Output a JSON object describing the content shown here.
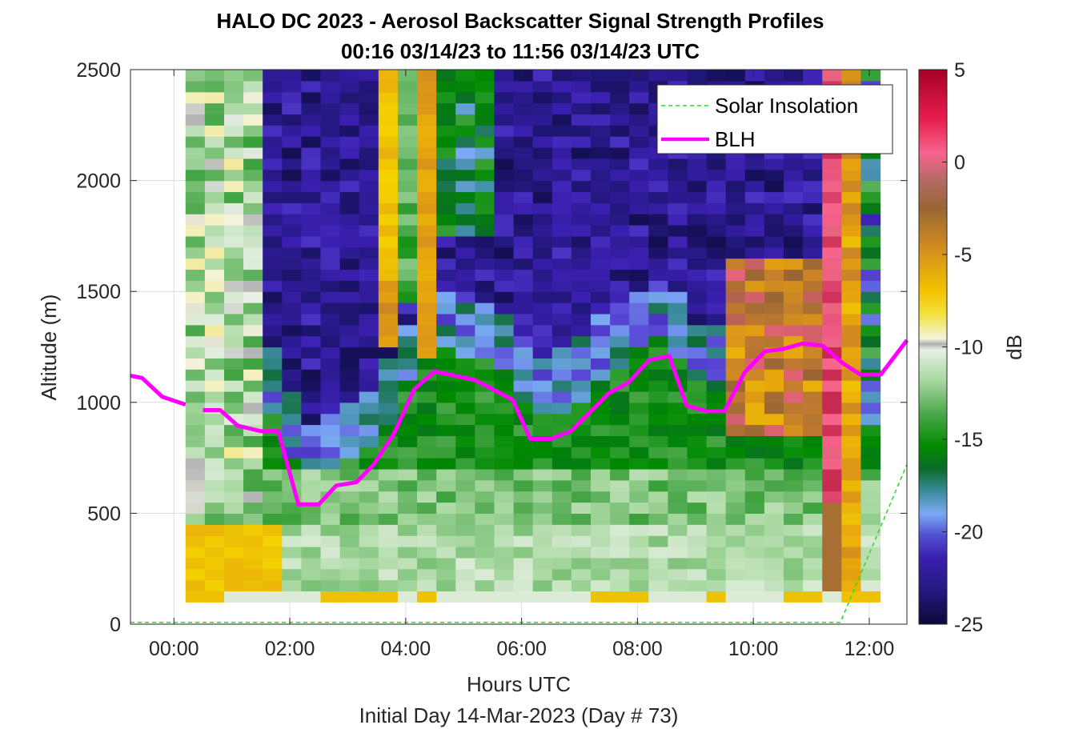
{
  "chart_data": {
    "type": "heatmap",
    "title": "HALO DC 2023 - Aerosol Backscatter Signal Strength Profiles",
    "subtitle": "00:16 03/14/23 to 11:56 03/14/23  UTC",
    "xlabel": "Hours UTC",
    "xlabel2": "Initial Day 14-Mar-2023 (Day # 73)",
    "ylabel": "Altitude (m)",
    "xlim": [
      -0.75,
      12.65
    ],
    "ylim": [
      0,
      2500
    ],
    "x_ticks": [
      0,
      2,
      4,
      6,
      8,
      10,
      12
    ],
    "x_tick_labels": [
      "00:00",
      "02:00",
      "04:00",
      "06:00",
      "08:00",
      "10:00",
      "12:00"
    ],
    "y_ticks": [
      0,
      500,
      1000,
      1500,
      2000,
      2500
    ],
    "y_tick_labels": [
      "0",
      "500",
      "1000",
      "1500",
      "2000",
      "2500"
    ],
    "grid": true,
    "colorbar": {
      "label": "dB",
      "range": [
        -25,
        5
      ],
      "ticks": [
        5,
        0,
        -5,
        -10,
        -15,
        -20,
        -25
      ],
      "tick_labels": [
        "5",
        "0",
        "-5",
        "-10",
        "-15",
        "-20",
        "-25"
      ]
    },
    "legend": {
      "location": "top-right",
      "entries": [
        {
          "label": "Solar Insolation",
          "color": "#22dd22",
          "style": "dashed"
        },
        {
          "label": "BLH",
          "color": "#ff00ff",
          "style": "solid"
        }
      ]
    },
    "heatmap": {
      "x_start": 0.2,
      "x_end": 11.9,
      "x_step": 0.333,
      "y_start": 100,
      "y_end": 2500,
      "y_step": 50,
      "value_unit": "dB"
    },
    "series": [
      {
        "name": "BLH",
        "x": [
          -0.75,
          -0.55,
          -0.2,
          0.2,
          0.5,
          0.8,
          1.1,
          1.5,
          1.8,
          2.15,
          2.5,
          2.8,
          3.15,
          3.45,
          3.8,
          4.15,
          4.5,
          4.85,
          5.2,
          5.5,
          5.85,
          6.15,
          6.5,
          6.85,
          7.2,
          7.5,
          7.85,
          8.2,
          8.55,
          8.85,
          9.2,
          9.5,
          9.85,
          10.2,
          10.5,
          10.85,
          11.2,
          11.55,
          11.85,
          12.2,
          12.65
        ],
        "y": [
          1120,
          1110,
          1025,
          990,
          965,
          965,
          895,
          870,
          870,
          540,
          540,
          625,
          640,
          720,
          860,
          1060,
          1140,
          1120,
          1100,
          1060,
          1010,
          835,
          835,
          870,
          960,
          1040,
          1090,
          1190,
          1210,
          985,
          960,
          960,
          1135,
          1230,
          1240,
          1265,
          1255,
          1175,
          1125,
          1125,
          1280
        ],
        "gaps_after_x": [
          0.2
        ]
      },
      {
        "name": "Solar Insolation",
        "x": [
          -0.75,
          11.5,
          12.65
        ],
        "y": [
          8,
          8,
          720
        ]
      }
    ]
  }
}
